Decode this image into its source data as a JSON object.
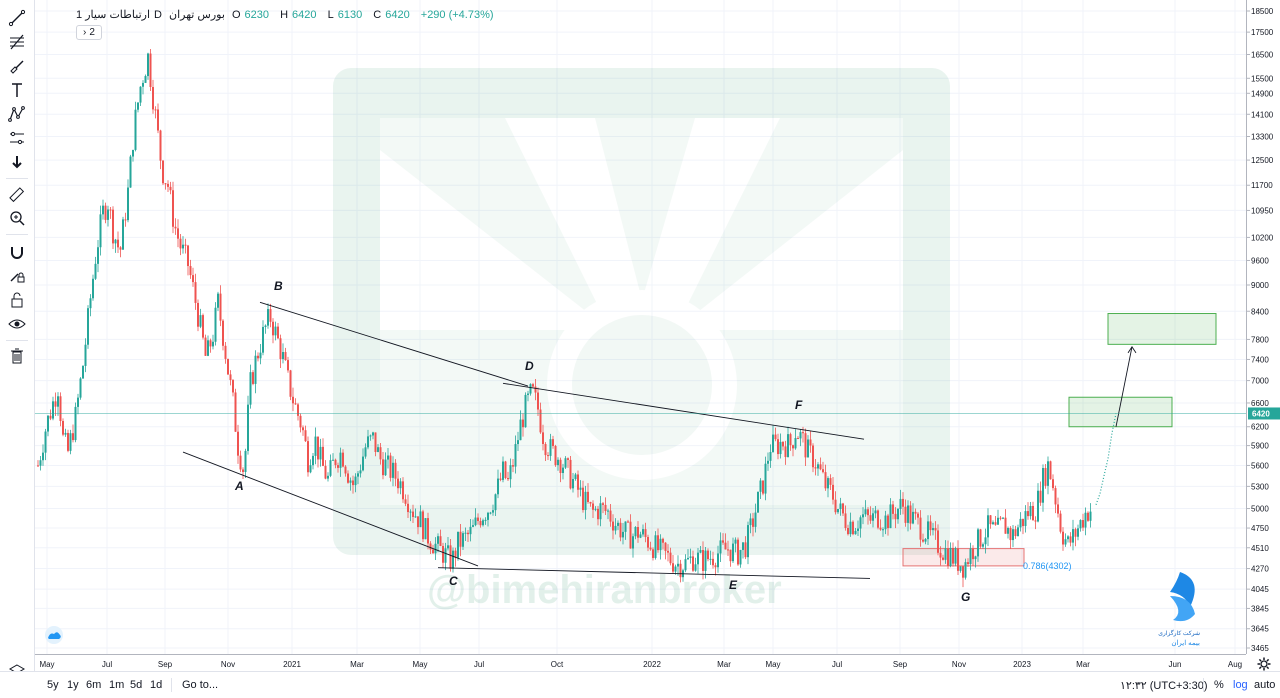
{
  "legend": {
    "symbol": "ارتباطات سیار",
    "interval": "1D",
    "exchange": "بورس تهران",
    "open_label": "O",
    "open": "6230",
    "high_label": "H",
    "high": "6420",
    "low_label": "L",
    "low": "6130",
    "close_label": "C",
    "close": "6420",
    "change": "+290 (+4.73%)",
    "collapse": "2"
  },
  "watermark": "@bimehiranbroker",
  "brand": {
    "line1": "شرکت کارگزاری",
    "line2": "بیمه ایران"
  },
  "chart_data": {
    "type": "candlestick",
    "title": "ارتباطات سیار · 1D · بورس تهران",
    "last_price": 6420,
    "price_ticks": [
      18500,
      17500,
      16500,
      15500,
      14900,
      14100,
      13300,
      12500,
      11700,
      10950,
      10200,
      9600,
      9000,
      8400,
      7800,
      7400,
      7000,
      6600,
      6200,
      5900,
      5600,
      5300,
      5000,
      4750,
      4510,
      4270,
      4045,
      3845,
      3645,
      3465
    ],
    "time_ticks": [
      "May",
      "Jul",
      "Sep",
      "Nov",
      "2021",
      "Mar",
      "May",
      "Jul",
      "Oct",
      "2022",
      "Mar",
      "May",
      "Jul",
      "Sep",
      "Nov",
      "2023",
      "Mar",
      "Jun",
      "Aug"
    ],
    "wave_labels": [
      "A",
      "B",
      "C",
      "D",
      "E",
      "F",
      "G"
    ],
    "fib_label": "0.786(4302)",
    "price_path": [
      [
        0,
        5600
      ],
      [
        8,
        6200
      ],
      [
        15,
        6600
      ],
      [
        20,
        6900
      ],
      [
        25,
        6000
      ],
      [
        30,
        5800
      ],
      [
        38,
        6400
      ],
      [
        45,
        7300
      ],
      [
        52,
        8600
      ],
      [
        58,
        9800
      ],
      [
        65,
        10900
      ],
      [
        70,
        11200
      ],
      [
        75,
        10400
      ],
      [
        82,
        9800
      ],
      [
        90,
        11500
      ],
      [
        96,
        13600
      ],
      [
        103,
        15300
      ],
      [
        110,
        16400
      ],
      [
        114,
        15100
      ],
      [
        118,
        13900
      ],
      [
        124,
        12200
      ],
      [
        130,
        11700
      ],
      [
        136,
        10600
      ],
      [
        142,
        10000
      ],
      [
        150,
        9500
      ],
      [
        156,
        8800
      ],
      [
        162,
        8100
      ],
      [
        168,
        7400
      ],
      [
        175,
        7900
      ],
      [
        180,
        8600
      ],
      [
        185,
        7900
      ],
      [
        190,
        7200
      ],
      [
        195,
        6600
      ],
      [
        200,
        5900
      ],
      [
        206,
        5500
      ],
      [
        212,
        6900
      ],
      [
        218,
        7400
      ],
      [
        225,
        7900
      ],
      [
        232,
        8300
      ],
      [
        238,
        7900
      ],
      [
        244,
        7500
      ],
      [
        250,
        7000
      ],
      [
        256,
        6600
      ],
      [
        264,
        6200
      ],
      [
        270,
        5700
      ],
      [
        277,
        6000
      ],
      [
        284,
        5600
      ],
      [
        290,
        5400
      ],
      [
        297,
        5700
      ],
      [
        304,
        5800
      ],
      [
        310,
        5500
      ],
      [
        316,
        5300
      ],
      [
        322,
        5600
      ],
      [
        328,
        5900
      ],
      [
        335,
        6000
      ],
      [
        342,
        5700
      ],
      [
        348,
        5600
      ],
      [
        354,
        5500
      ],
      [
        360,
        5400
      ],
      [
        368,
        5200
      ],
      [
        374,
        5000
      ],
      [
        382,
        4850
      ],
      [
        390,
        4650
      ],
      [
        398,
        4530
      ],
      [
        406,
        4440
      ],
      [
        414,
        4350
      ],
      [
        420,
        4560
      ],
      [
        427,
        4620
      ],
      [
        434,
        4700
      ],
      [
        442,
        4900
      ],
      [
        450,
        5000
      ],
      [
        458,
        5200
      ],
      [
        465,
        5500
      ],
      [
        470,
        5350
      ],
      [
        476,
        5700
      ],
      [
        482,
        6200
      ],
      [
        488,
        6550
      ],
      [
        494,
        6800
      ],
      [
        500,
        6500
      ],
      [
        506,
        6000
      ],
      [
        514,
        5800
      ],
      [
        522,
        5700
      ],
      [
        530,
        5500
      ],
      [
        538,
        5300
      ],
      [
        546,
        5100
      ],
      [
        554,
        4950
      ],
      [
        562,
        5000
      ],
      [
        570,
        4950
      ],
      [
        578,
        4800
      ],
      [
        586,
        4700
      ],
      [
        594,
        4650
      ],
      [
        600,
        4700
      ],
      [
        608,
        4620
      ],
      [
        616,
        4530
      ],
      [
        624,
        4450
      ],
      [
        632,
        4380
      ],
      [
        640,
        4320
      ],
      [
        648,
        4330
      ],
      [
        656,
        4400
      ],
      [
        664,
        4360
      ],
      [
        672,
        4400
      ],
      [
        680,
        4450
      ],
      [
        690,
        4500
      ],
      [
        700,
        4450
      ],
      [
        708,
        4550
      ],
      [
        714,
        4800
      ],
      [
        720,
        5100
      ],
      [
        726,
        5400
      ],
      [
        732,
        5900
      ],
      [
        738,
        5900
      ],
      [
        744,
        5950
      ],
      [
        752,
        5900
      ],
      [
        758,
        6150
      ],
      [
        764,
        6000
      ],
      [
        770,
        5800
      ],
      [
        776,
        5700
      ],
      [
        782,
        5500
      ],
      [
        788,
        5300
      ],
      [
        794,
        5200
      ],
      [
        800,
        5000
      ],
      [
        808,
        4850
      ],
      [
        816,
        4800
      ],
      [
        824,
        4900
      ],
      [
        832,
        4850
      ],
      [
        840,
        4900
      ],
      [
        848,
        4850
      ],
      [
        856,
        4950
      ],
      [
        864,
        5050
      ],
      [
        872,
        4900
      ],
      [
        880,
        4800
      ],
      [
        888,
        4700
      ],
      [
        896,
        4600
      ],
      [
        904,
        4500
      ],
      [
        912,
        4430
      ],
      [
        920,
        4350
      ],
      [
        926,
        4300
      ],
      [
        932,
        4450
      ],
      [
        938,
        4550
      ],
      [
        944,
        4650
      ],
      [
        950,
        4750
      ],
      [
        958,
        4700
      ],
      [
        966,
        4800
      ],
      [
        974,
        4650
      ],
      [
        982,
        4800
      ],
      [
        990,
        4950
      ],
      [
        998,
        5000
      ],
      [
        1005,
        5400
      ],
      [
        1010,
        5600
      ],
      [
        1014,
        5400
      ],
      [
        1018,
        5100
      ],
      [
        1024,
        4700
      ],
      [
        1030,
        4550
      ],
      [
        1036,
        4650
      ],
      [
        1042,
        4800
      ],
      [
        1048,
        4950
      ],
      [
        1054,
        5000
      ]
    ],
    "dotted_path": [
      [
        1058,
        5050
      ],
      [
        1062,
        5200
      ],
      [
        1066,
        5450
      ],
      [
        1070,
        5700
      ],
      [
        1074,
        6100
      ],
      [
        1078,
        6420
      ]
    ],
    "lines": [
      {
        "name": "A-C trendline",
        "from": [
          145,
          5800
        ],
        "to": [
          440,
          4300
        ]
      },
      {
        "name": "B-D trendline",
        "from": [
          222,
          8600
        ],
        "to": [
          490,
          6900
        ]
      },
      {
        "name": "D-F trendline",
        "from": [
          465,
          6950
        ],
        "to": [
          826,
          6000
        ]
      },
      {
        "name": "C-E trendline",
        "from": [
          400,
          4280
        ],
        "to": [
          832,
          4160
        ]
      },
      {
        "name": "target arrow",
        "from": [
          1078,
          6200
        ],
        "to": [
          1094,
          7650
        ]
      }
    ],
    "boxes": [
      {
        "name": "target-box-upper",
        "x1": 1070,
        "x2": 1178,
        "y1": 7700,
        "y2": 8350,
        "color": "#4caf50"
      },
      {
        "name": "target-box-lower",
        "x1": 1031,
        "x2": 1134,
        "y1": 6200,
        "y2": 6700,
        "color": "#4caf50"
      },
      {
        "name": "support-box",
        "x1": 865,
        "x2": 986,
        "y1": 4300,
        "y2": 4500,
        "color": "#e57373"
      }
    ],
    "ylim": [
      3465,
      18500
    ],
    "scale": "log"
  },
  "bottom_bar": {
    "ranges": [
      "5y",
      "1y",
      "6m",
      "1m",
      "5d",
      "1d"
    ],
    "goto": "Go to...",
    "time": "۱۲:۳۲ (UTC+3:30)",
    "percent": "%",
    "log": "log",
    "auto": "auto"
  }
}
